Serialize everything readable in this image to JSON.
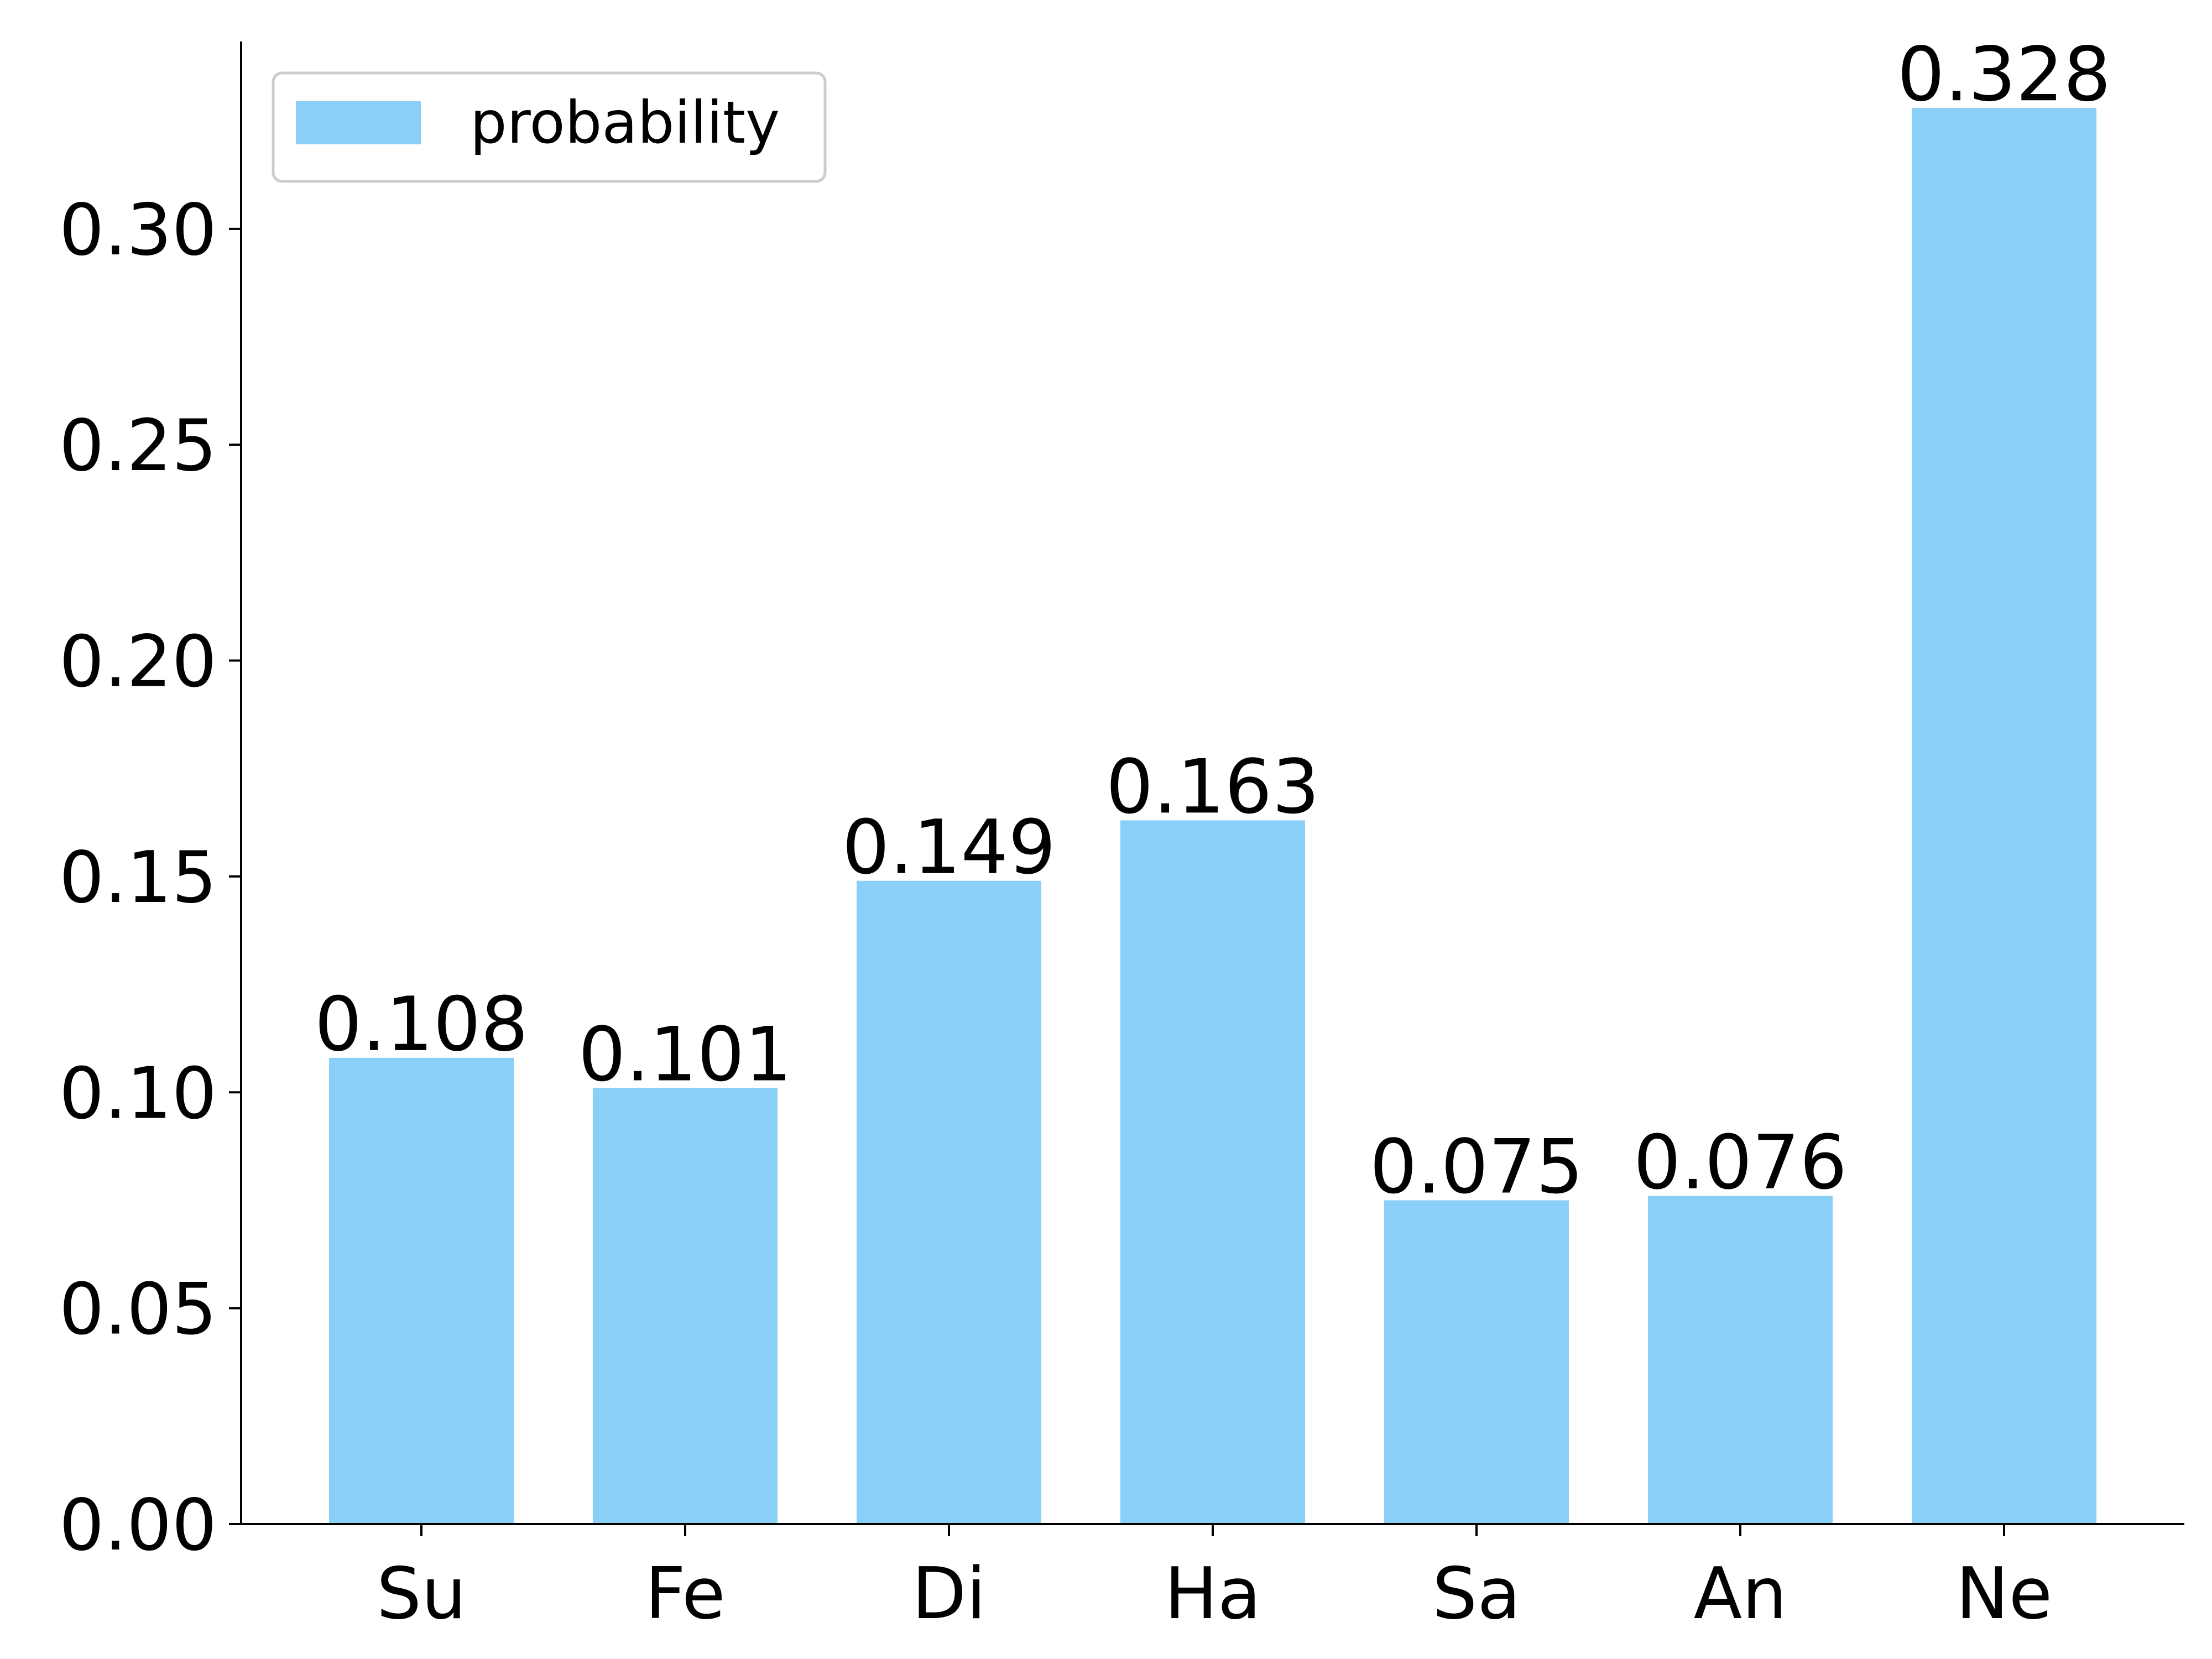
{
  "chart_data": {
    "type": "bar",
    "categories": [
      "Su",
      "Fe",
      "Di",
      "Ha",
      "Sa",
      "An",
      "Ne"
    ],
    "series": [
      {
        "name": "probability",
        "values": [
          0.108,
          0.101,
          0.149,
          0.163,
          0.075,
          0.076,
          0.328
        ],
        "labels": [
          "0.108",
          "0.101",
          "0.149",
          "0.163",
          "0.075",
          "0.076",
          "0.328"
        ],
        "color": "#89CFF8"
      }
    ],
    "yticks": [
      0.0,
      0.05,
      0.1,
      0.15,
      0.2,
      0.25,
      0.3
    ],
    "ytick_labels": [
      "0.00",
      "0.05",
      "0.10",
      "0.15",
      "0.20",
      "0.25",
      "0.30"
    ],
    "ylim": [
      0,
      0.3434
    ],
    "legend": {
      "label": "probability",
      "placement": "top-left"
    },
    "grid": false,
    "axis_color": "#000000"
  }
}
